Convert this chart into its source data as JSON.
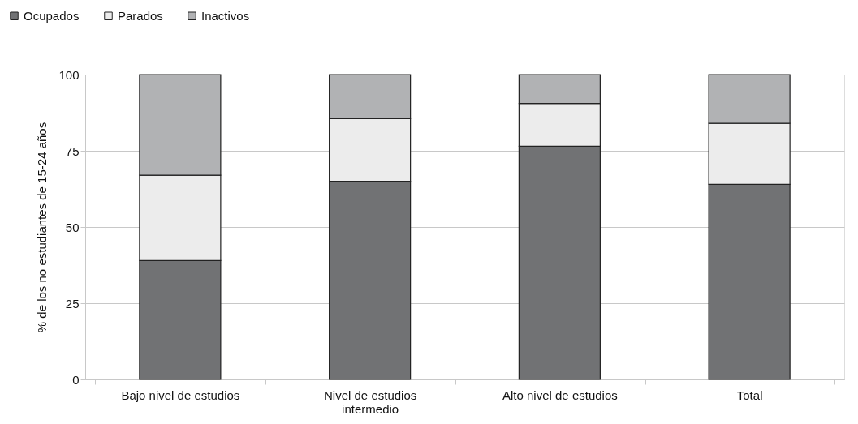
{
  "chart_data": {
    "type": "bar",
    "stacked": true,
    "ylabel": "% de los no estudiantes de 15-24 años",
    "categories": [
      "Bajo nivel de estudios",
      "Nivel de estudios intermedio",
      "Alto nivel de estudios",
      "Total"
    ],
    "series": [
      {
        "name": "Ocupados",
        "color": "#717274",
        "values": [
          39,
          65,
          76.5,
          64
        ]
      },
      {
        "name": "Parados",
        "color": "#ececec",
        "values": [
          28,
          20.5,
          14,
          20
        ]
      },
      {
        "name": "Inactivos",
        "color": "#b1b2b4",
        "values": [
          33,
          14.5,
          9.5,
          16
        ]
      }
    ],
    "ylim": [
      0,
      100
    ],
    "yticks": [
      0,
      25,
      50,
      75,
      100
    ],
    "grid": "y",
    "legend": "top left"
  }
}
